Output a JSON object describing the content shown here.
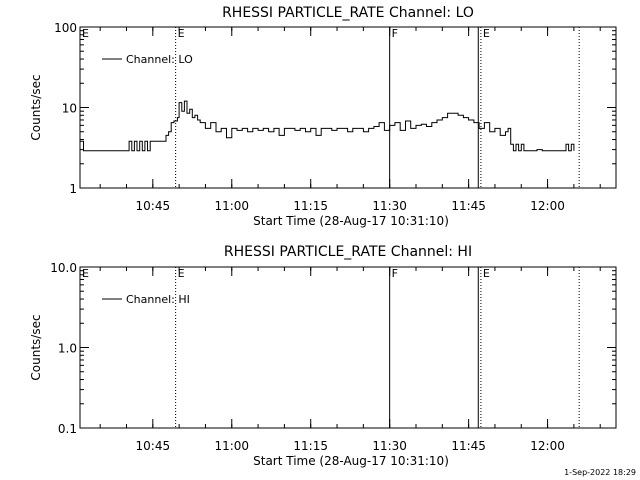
{
  "footer": {
    "timestamp": "1-Sep-2022 18:29"
  },
  "chart_data": [
    {
      "type": "line",
      "title": "RHESSI PARTICLE_RATE Channel: LO",
      "xlabel": "Start Time (28-Aug-17 10:31:10)",
      "ylabel": "Counts/sec",
      "yscale": "log",
      "ylim": [
        1,
        100
      ],
      "xlim": [
        "10:31:10",
        "12:13:00"
      ],
      "x_ticks": [
        "10:45",
        "11:00",
        "11:15",
        "11:30",
        "11:45",
        "12:00"
      ],
      "y_ticks": [
        "1",
        "10",
        "100"
      ],
      "legend": {
        "label": "Channel: LO",
        "position": "top-left"
      },
      "markers": [
        {
          "time": "10:49:20",
          "label": "E",
          "style": "dotted"
        },
        {
          "time": "11:30:00",
          "label": "F",
          "style": "solid"
        },
        {
          "time": "11:46:50",
          "label": "",
          "style": "solid"
        },
        {
          "time": "11:47:20",
          "label": "E",
          "style": "dotted"
        },
        {
          "time": "12:06:00",
          "label": "",
          "style": "dotted"
        }
      ],
      "series": [
        {
          "name": "Channel: LO",
          "x": [
            "10:31:10",
            "10:31:50",
            "10:32:30",
            "10:33:10",
            "10:34:00",
            "10:36:00",
            "10:38:00",
            "10:40:00",
            "10:40:30",
            "10:41:00",
            "10:41:30",
            "10:42:00",
            "10:42:30",
            "10:43:00",
            "10:43:30",
            "10:44:00",
            "10:44:30",
            "10:45:00",
            "10:45:30",
            "10:46:00",
            "10:46:30",
            "10:47:00",
            "10:47:30",
            "10:48:00",
            "10:48:30",
            "10:49:00",
            "10:49:20",
            "10:49:40",
            "10:50:00",
            "10:50:30",
            "10:51:00",
            "10:51:30",
            "10:52:00",
            "10:52:30",
            "10:53:00",
            "10:53:30",
            "10:54:00",
            "10:55:00",
            "10:56:00",
            "10:57:00",
            "10:58:00",
            "10:59:00",
            "11:00:00",
            "11:01:00",
            "11:02:00",
            "11:03:00",
            "11:04:00",
            "11:05:00",
            "11:06:00",
            "11:07:00",
            "11:08:00",
            "11:09:00",
            "11:10:00",
            "11:11:00",
            "11:12:00",
            "11:13:00",
            "11:14:00",
            "11:15:00",
            "11:16:00",
            "11:17:00",
            "11:18:00",
            "11:19:00",
            "11:20:00",
            "11:21:00",
            "11:22:00",
            "11:23:00",
            "11:24:00",
            "11:25:00",
            "11:26:00",
            "11:27:00",
            "11:28:00",
            "11:29:00",
            "11:30:00",
            "11:31:00",
            "11:32:00",
            "11:33:00",
            "11:34:00",
            "11:35:00",
            "11:36:00",
            "11:37:00",
            "11:38:00",
            "11:39:00",
            "11:40:00",
            "11:41:00",
            "11:42:00",
            "11:43:00",
            "11:44:00",
            "11:45:00",
            "11:46:00",
            "11:47:00",
            "11:48:00",
            "11:49:00",
            "11:50:00",
            "11:51:00",
            "11:52:00",
            "11:52:30",
            "11:53:00",
            "11:53:30",
            "11:54:00",
            "11:54:30",
            "11:55:00",
            "11:55:30",
            "11:56:00",
            "11:57:00",
            "11:58:00",
            "11:59:00",
            "12:00:00",
            "12:01:00",
            "12:02:00",
            "12:03:00",
            "12:03:30",
            "12:04:00",
            "12:04:30",
            "12:05:00"
          ],
          "y": [
            3.8,
            2.9,
            2.9,
            2.9,
            2.9,
            2.9,
            2.9,
            2.9,
            3.8,
            2.9,
            3.8,
            2.9,
            3.8,
            2.9,
            3.8,
            2.9,
            3.8,
            3.8,
            3.8,
            3.8,
            3.8,
            3.8,
            4.5,
            5.0,
            6.5,
            6.8,
            6.8,
            7.5,
            11.5,
            9.0,
            12.0,
            8.5,
            9.5,
            7.5,
            8.0,
            7.0,
            6.5,
            5.5,
            6.5,
            5.0,
            5.5,
            4.2,
            5.5,
            5.2,
            5.5,
            5.0,
            5.5,
            5.2,
            5.5,
            5.0,
            5.5,
            4.5,
            5.5,
            5.5,
            5.2,
            5.5,
            5.0,
            5.5,
            4.5,
            5.5,
            5.5,
            5.2,
            5.5,
            5.5,
            5.0,
            5.5,
            5.5,
            5.0,
            5.5,
            5.8,
            6.5,
            5.2,
            6.0,
            6.5,
            5.2,
            6.8,
            5.5,
            6.0,
            6.2,
            5.8,
            6.5,
            7.0,
            7.5,
            8.5,
            8.5,
            8.0,
            7.5,
            7.0,
            6.5,
            5.5,
            6.5,
            5.0,
            5.5,
            4.5,
            5.0,
            5.5,
            3.5,
            2.9,
            3.5,
            2.9,
            3.5,
            2.9,
            2.9,
            2.9,
            3.0,
            2.9,
            2.9,
            2.9,
            2.9,
            2.9,
            3.5,
            2.9,
            3.5,
            2.9
          ]
        }
      ]
    },
    {
      "type": "line",
      "title": "RHESSI PARTICLE_RATE Channel: HI",
      "xlabel": "Start Time (28-Aug-17 10:31:10)",
      "ylabel": "Counts/sec",
      "yscale": "log",
      "ylim": [
        0.1,
        10
      ],
      "xlim": [
        "10:31:10",
        "12:13:00"
      ],
      "x_ticks": [
        "10:45",
        "11:00",
        "11:15",
        "11:30",
        "11:45",
        "12:00"
      ],
      "y_ticks": [
        "0.1",
        "1.0",
        "10.0"
      ],
      "legend": {
        "label": "Channel: HI",
        "position": "top-left"
      },
      "markers": [
        {
          "time": "10:49:20",
          "label": "E",
          "style": "dotted"
        },
        {
          "time": "11:30:00",
          "label": "F",
          "style": "solid"
        },
        {
          "time": "11:46:50",
          "label": "",
          "style": "solid"
        },
        {
          "time": "11:47:20",
          "label": "E",
          "style": "dotted"
        },
        {
          "time": "12:06:00",
          "label": "",
          "style": "dotted"
        }
      ],
      "series": [
        {
          "name": "Channel: HI",
          "x": [],
          "y": []
        }
      ]
    }
  ]
}
